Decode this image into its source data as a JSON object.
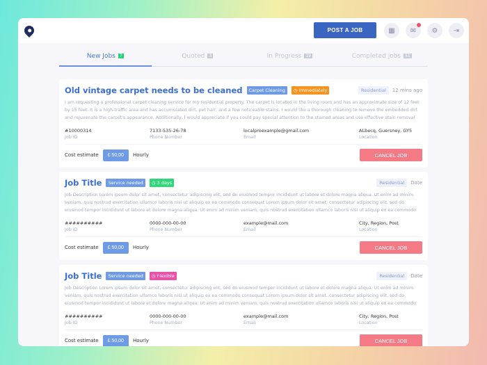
{
  "header": {
    "post_label": "POST A JOB",
    "icons": [
      "grid-icon",
      "mail-icon",
      "gear-icon",
      "logout-icon"
    ]
  },
  "tabs": [
    {
      "label": "New Jobs",
      "count": "7"
    },
    {
      "label": "Quoted",
      "count": "3"
    },
    {
      "label": "In Progress",
      "count": "19"
    },
    {
      "label": "Completed jobs",
      "count": "51"
    }
  ],
  "jobs": [
    {
      "title": "Old vintage carpet needs to be cleaned",
      "service": "Carpet Cleaning",
      "urgency": "Immediately",
      "urgency_color": "#f7931e",
      "type": "Residential",
      "date": "12 mins ago",
      "desc": "I am requesting a professional carpet cleaning service for my residential property. The carpet is located in the living room and has an approximate size of 12 feet by 15 feet. It is a high-traffic area and has accumulated dirt, pet hair, and a few noticeable stains. I would like a thorough cleaning to remove the embedded dirt and rejuvenate the carpet's appearance. Additionally, I would appreciate if you could pay special attention to the stained areas and use effective stain removal techniques.",
      "id": "#10000314",
      "phone": "7133-535-26-78",
      "email": "localproexample@gmail.com",
      "location": "ALbecq, Guersney, GY5",
      "price": "£ 50,00"
    },
    {
      "title": "Job Title",
      "service": "Service needed",
      "urgency": "3 days",
      "urgency_color": "#2fd67a",
      "type": "Residential",
      "date": "Date",
      "desc": "Job Description Lorem ipsum dolor sit amet, consectetur adipiscing elit, sed do eiusmod tempor incididunt ut labore et dolore magna aliqua. Ut enim ad minim veniam, quis nostrud exercitation ullamco laboris nisi ut aliquip ex ea commodo consequat Lorem ipsum dolor sit amet, consectetur adipiscing elit, sed do eiusmod tempor incididunt ut labore et dolore magna aliqua. Ut enim ad minim veniam, quis nostrud exercitation ullamco laboris nisi ut aliquip ex ea commodo consequat",
      "id": "##########",
      "phone": "0000-000-00-00",
      "email": "example@mail.com",
      "location": "City, Region, Post",
      "price": "£ 50,00"
    },
    {
      "title": "Job Title",
      "service": "Service needed",
      "urgency": "Flexible",
      "urgency_color": "#ee4fa8",
      "type": "Residential",
      "date": "Date",
      "desc": "Job Description Lorem ipsum dolor sit amet, consectetur adipiscing elit, sed do eiusmod tempor incididunt ut labore et dolore magna aliqua. Ut enim ad minim veniam, quis nostrud exercitation ullamco laboris nisi ut aliquip ex ea commodo consequat Lorem ipsum dolor sit amet, consectetur adipiscing elit, sed do eiusmod tempor incididunt ut labore et dolore magna aliqua. Ut enim ad minim veniam, quis nostrud exercitation ullamco laboris nisi ut aliquip ex ea commodo consequat",
      "id": "##########",
      "phone": "0000-000-00-00",
      "email": "example@mail.com",
      "location": "City, Region, Post",
      "price": "£ 50,00"
    }
  ],
  "labels": {
    "job_id": "Job ID",
    "phone": "Phone Number",
    "email": "Email",
    "location": "Location",
    "cost": "Cost estimate",
    "hourly": "Hourly",
    "cancel": "CANCEL JOB"
  }
}
